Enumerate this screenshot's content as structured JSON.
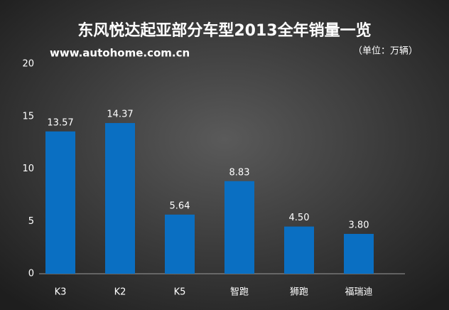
{
  "chart_data": {
    "type": "bar",
    "title": "东风悦达起亚部分车型2013全年销量一览",
    "subtitle": "www.autohome.com.cn",
    "unit": "（单位：万辆）",
    "categories": [
      "K3",
      "K2",
      "K5",
      "智跑",
      "狮跑",
      "福瑞迪"
    ],
    "values": [
      13.57,
      14.37,
      5.64,
      8.83,
      4.5,
      3.8
    ],
    "value_labels": [
      "13.57",
      "14.37",
      "5.64",
      "8.83",
      "4.50",
      "3.80"
    ],
    "color": "#0a6fc2",
    "ylim": [
      0,
      20
    ],
    "yticks": [
      0,
      5,
      10,
      15,
      20
    ],
    "grid": false
  }
}
